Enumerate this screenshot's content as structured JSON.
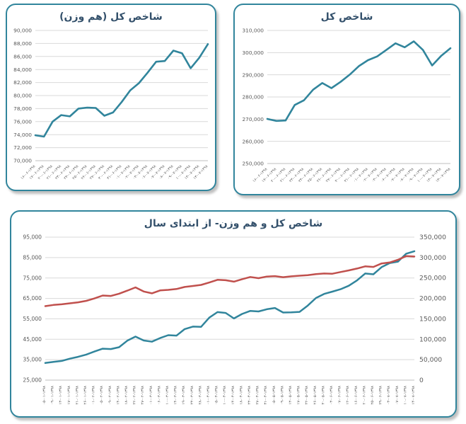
{
  "colors": {
    "card_border": "#31859C",
    "teal_line": "#31859C",
    "red_line": "#C0504D",
    "title_text": "#33506B",
    "axis_text": "#595959",
    "gridline": "#D9D9D9",
    "axis_line": "#BFBFBF",
    "background": "#FFFFFF"
  },
  "chart_data": [
    {
      "id": "equal-weight-monthly",
      "type": "line",
      "title": "شاخص کل (هم وزن)",
      "grid": true,
      "legend": "none",
      "x_label_rotation": -45,
      "y_left": {
        "min": 70000,
        "max": 90000,
        "step": 2000
      },
      "categories": [
        "۱۶-۰۶-۱۳۹۸",
        "۱۷-۰۶-۱۳۹۸",
        "۲۰-۰۶-۱۳۹۸",
        "۲۱-۰۶-۱۳۹۸",
        "۲۳-۰۶-۱۳۹۸",
        "۲۴-۰۶-۱۳۹۸",
        "۲۵-۰۶-۱۳۹۸",
        "۲۶-۰۶-۱۳۹۸",
        "۲۷-۰۶-۱۳۹۸",
        "۳۰-۰۶-۱۳۹۸",
        "۳۱-۰۶-۱۳۹۸",
        "۰۱-۰۷-۱۳۹۸",
        "۰۲-۰۷-۱۳۹۸",
        "۰۳-۰۷-۱۳۹۸",
        "۰۶-۰۷-۱۳۹۸",
        "۰۷-۰۷-۱۳۹۸",
        "۰۸-۰۷-۱۳۹۸",
        "۰۹-۰۷-۱۳۹۸",
        "۱۰-۰۷-۱۳۹۸",
        "۱۳-۰۷-۱۳۹۸",
        "۱۴-۰۷-۱۳۹۸"
      ],
      "series": [
        {
          "name": "شاخص کل (هم وزن)",
          "axis": "left",
          "color": "#31859C",
          "values": [
            73900,
            73700,
            76000,
            77000,
            76800,
            78000,
            78150,
            78100,
            76900,
            77400,
            79000,
            80800,
            81900,
            83500,
            85200,
            85300,
            86900,
            86500,
            84200,
            85800,
            87900
          ]
        }
      ]
    },
    {
      "id": "total-index-monthly",
      "type": "line",
      "title": "شاخص کل",
      "grid": true,
      "legend": "none",
      "x_label_rotation": -45,
      "y_left": {
        "min": 250000,
        "max": 310000,
        "step": 10000
      },
      "categories": [
        "۱۶-۰۶-۱۳۹۸",
        "۱۷-۰۶-۱۳۹۸",
        "۲۰-۰۶-۱۳۹۸",
        "۲۱-۰۶-۱۳۹۸",
        "۲۳-۰۶-۱۳۹۸",
        "۲۴-۰۶-۱۳۹۸",
        "۲۵-۰۶-۱۳۹۸",
        "۲۶-۰۶-۱۳۹۸",
        "۲۷-۰۶-۱۳۹۸",
        "۳۰-۰۶-۱۳۹۸",
        "۳۱-۰۶-۱۳۹۸",
        "۰۱-۰۷-۱۳۹۸",
        "۰۲-۰۷-۱۳۹۸",
        "۰۳-۰۷-۱۳۹۸",
        "۰۶-۰۷-۱۳۹۸",
        "۰۷-۰۷-۱۳۹۸",
        "۰۸-۰۷-۱۳۹۸",
        "۰۹-۰۷-۱۳۹۸",
        "۱۰-۰۷-۱۳۹۸",
        "۱۳-۰۷-۱۳۹۸",
        "۱۴-۰۷-۱۳۹۸"
      ],
      "series": [
        {
          "name": "شاخص کل",
          "axis": "left",
          "color": "#31859C",
          "values": [
            270100,
            269200,
            269400,
            276400,
            278500,
            283300,
            286300,
            284000,
            286800,
            290100,
            293900,
            296600,
            298300,
            301200,
            304200,
            302400,
            305100,
            301200,
            294200,
            298600,
            302000
          ]
        }
      ]
    },
    {
      "id": "ytd-combined",
      "type": "line",
      "title": "شاخص کل و هم وزن- از ابتدای سال",
      "grid": true,
      "legend": "none",
      "x_label_rotation": -90,
      "y_left": {
        "min": 25000,
        "max": 95000,
        "step": 10000
      },
      "y_right": {
        "min": 0,
        "max": 350000,
        "step": 50000
      },
      "categories": [
        "۰۵-۰۱-۱۳۹۸",
        "۰۹-۰۱-۱۳۹۸",
        "۱۳-۰۱-۱۳۹۸",
        "۱۷-۰۱-۱۳۹۸",
        "۲۱-۰۱-۱۳۹۸",
        "۲۶-۰۱-۱۳۹۸",
        "۰۱-۰۲-۱۳۹۸",
        "۰۵-۰۲-۱۳۹۸",
        "۰۹-۰۲-۱۳۹۸",
        "۱۴-۰۲-۱۳۹۸",
        "۱۸-۰۲-۱۳۹۸",
        "۲۲-۰۲-۱۳۹۸",
        "۲۷-۰۲-۱۳۹۸",
        "۰۱-۰۳-۱۳۹۸",
        "۰۶-۰۳-۱۳۹۸",
        "۱۰-۰۳-۱۳۹۸",
        "۱۴-۰۳-۱۳۹۸",
        "۱۹-۰۳-۱۳۹۸",
        "۲۳-۰۳-۱۳۹۸",
        "۲۸-۰۳-۱۳۹۸",
        "۰۱-۰۴-۱۳۹۸",
        "۰۵-۰۴-۱۳۹۸",
        "۱۰-۰۴-۱۳۹۸",
        "۱۴-۰۴-۱۳۹۸",
        "۱۸-۰۴-۱۳۹۸",
        "۲۳-۰۴-۱۳۹۸",
        "۲۷-۰۴-۱۳۹۸",
        "۳۱-۰۴-۱۳۹۸",
        "۰۵-۰۵-۱۳۹۸",
        "۰۹-۰۵-۱۳۹۸",
        "۱۳-۰۵-۱۳۹۸",
        "۱۷-۰۵-۱۳۹۸",
        "۲۲-۰۵-۱۳۹۸",
        "۲۶-۰۵-۱۳۹۸",
        "۳۰-۰۵-۱۳۹۸",
        "۰۳-۰۶-۱۳۹۸",
        "۰۷-۰۶-۱۳۹۸",
        "۱۲-۰۶-۱۳۹۸",
        "۱۶-۰۶-۱۳۹۸",
        "۲۰-۰۶-۱۳۹۸",
        "۲۵-۰۶-۱۳۹۸",
        "۲۹-۰۶-۱۳۹۸",
        "۰۳-۰۷-۱۳۹۸",
        "۰۷-۰۷-۱۳۹۸",
        "۱۰-۰۷-۱۳۹۸",
        "۱۴-۰۷-۱۳۹۸"
      ],
      "series": [
        {
          "name": "شاخص کل (هم وزن)",
          "axis": "left",
          "color": "#31859C",
          "values": [
            33400,
            33900,
            34400,
            35500,
            36400,
            37500,
            39000,
            40400,
            40200,
            41100,
            44300,
            46300,
            44400,
            43800,
            45600,
            47000,
            46800,
            50000,
            51200,
            51100,
            55600,
            58300,
            57900,
            55200,
            57400,
            58900,
            58600,
            59700,
            60300,
            58100,
            58200,
            58400,
            61500,
            65200,
            67200,
            68300,
            69500,
            71200,
            73800,
            77200,
            76800,
            80300,
            82300,
            83000,
            86900,
            88100
          ]
        },
        {
          "name": "شاخص کل",
          "axis": "right",
          "color": "#C0504D",
          "values": [
            181000,
            184000,
            185500,
            188000,
            190500,
            194000,
            200000,
            207000,
            206000,
            211500,
            219000,
            227000,
            217000,
            212500,
            219500,
            221000,
            223000,
            228000,
            230500,
            233000,
            239000,
            245500,
            244500,
            241000,
            247000,
            252500,
            249500,
            253500,
            254500,
            252000,
            254000,
            255500,
            257000,
            259500,
            261000,
            260500,
            264500,
            268500,
            273000,
            278500,
            277000,
            285500,
            288000,
            294500,
            303500,
            302500
          ]
        }
      ]
    }
  ]
}
